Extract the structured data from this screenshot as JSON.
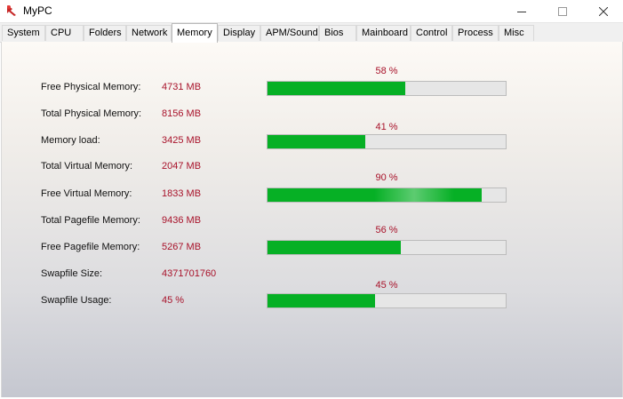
{
  "window": {
    "title": "MyPC"
  },
  "tabs": [
    {
      "label": "System"
    },
    {
      "label": "CPU"
    },
    {
      "label": "Folders"
    },
    {
      "label": "Network"
    },
    {
      "label": "Memory"
    },
    {
      "label": "Display"
    },
    {
      "label": "APM/Sound"
    },
    {
      "label": "Bios"
    },
    {
      "label": "Mainboard"
    },
    {
      "label": "Control"
    },
    {
      "label": "Process"
    },
    {
      "label": "Misc"
    }
  ],
  "active_tab": "Memory",
  "memory": {
    "rows": [
      {
        "label": "Free Physical Memory:",
        "value": "4731 MB"
      },
      {
        "label": "Total Physical Memory:",
        "value": "8156 MB"
      },
      {
        "label": "Memory load:",
        "value": "3425 MB"
      },
      {
        "label": "Total Virtual Memory:",
        "value": "2047 MB"
      },
      {
        "label": "Free Virtual Memory:",
        "value": "1833 MB"
      },
      {
        "label": "Total Pagefile Memory:",
        "value": "9436 MB"
      },
      {
        "label": "Free Pagefile Memory:",
        "value": "5267 MB"
      },
      {
        "label": "Swapfile Size:",
        "value": "4371701760"
      },
      {
        "label": "Swapfile Usage:",
        "value": "45 %"
      }
    ],
    "bars": [
      {
        "percent_label": "58 %",
        "fill_percent": 58
      },
      {
        "percent_label": "41 %",
        "fill_percent": 41
      },
      {
        "percent_label": "90 %",
        "fill_percent": 90
      },
      {
        "percent_label": "56 %",
        "fill_percent": 56
      },
      {
        "percent_label": "45 %",
        "fill_percent": 45
      }
    ]
  },
  "colors": {
    "value_text": "#a8122a",
    "bar_fill": "#06b025",
    "bar_track": "#e6e6e6"
  }
}
